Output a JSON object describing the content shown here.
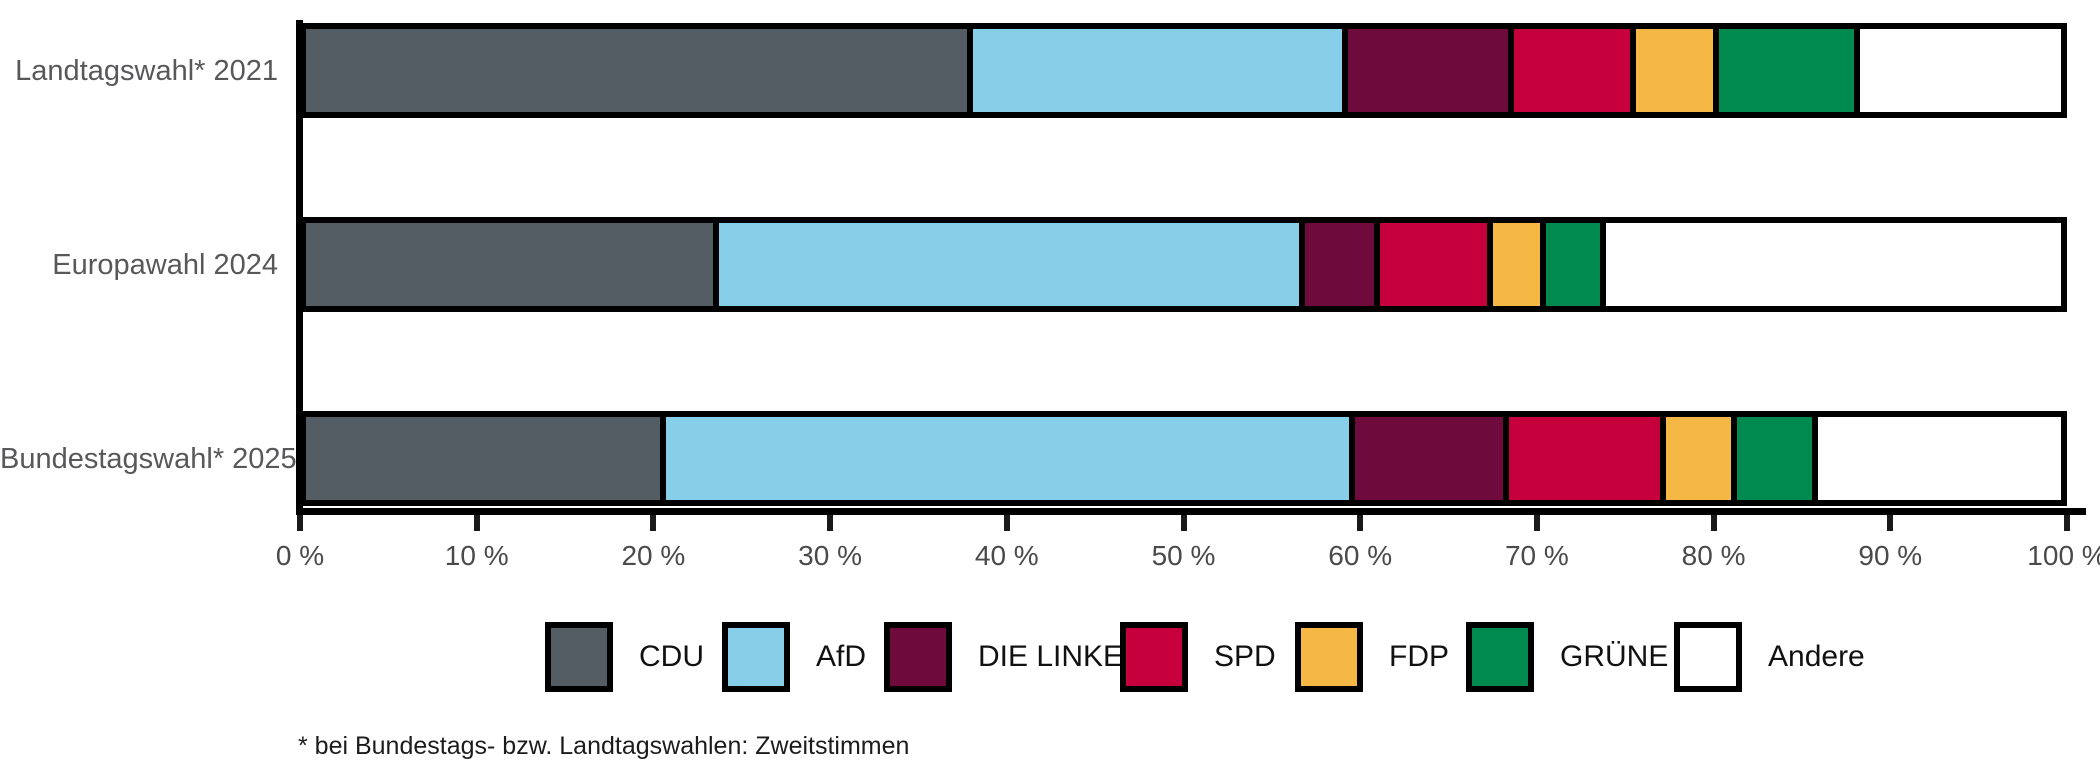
{
  "chart_data": {
    "type": "bar",
    "orientation": "horizontal",
    "stacked": true,
    "unit": "%",
    "title": "",
    "categories": [
      "Landtagswahl* 2021",
      "Europawahl 2024",
      "Bundestagswahl* 2025"
    ],
    "series": [
      {
        "name": "CDU",
        "color": "#545d63",
        "values": [
          38.1,
          23.7,
          20.7
        ]
      },
      {
        "name": "AfD",
        "color": "#87cee9",
        "values": [
          21.2,
          33.2,
          39.0
        ]
      },
      {
        "name": "DIE LINKE",
        "color": "#6e0b3c",
        "values": [
          9.4,
          4.2,
          8.7
        ]
      },
      {
        "name": "SPD",
        "color": "#c5003d",
        "values": [
          6.9,
          6.4,
          8.9
        ]
      },
      {
        "name": "FDP",
        "color": "#f6b844",
        "values": [
          4.7,
          3.0,
          4.0
        ]
      },
      {
        "name": "GRÜNE",
        "color": "#008a50",
        "values": [
          8.0,
          3.4,
          4.6
        ]
      },
      {
        "name": "Andere",
        "color": "#ffffff",
        "values": [
          11.7,
          26.1,
          14.1
        ]
      }
    ],
    "x_axis": {
      "min": 0,
      "max": 100,
      "tick_step": 10,
      "tick_labels": [
        "0 %",
        "10 %",
        "20 %",
        "30 %",
        "40 %",
        "50 %",
        "60 %",
        "70 %",
        "80 %",
        "90 %",
        "100 %"
      ],
      "grid": false
    },
    "legend": {
      "position": "bottom"
    },
    "footnote": "* bei Bundestags- bzw. Landtagswahlen: Zweitstimmen",
    "axis_color": "#000000",
    "border_color": "#000000"
  }
}
